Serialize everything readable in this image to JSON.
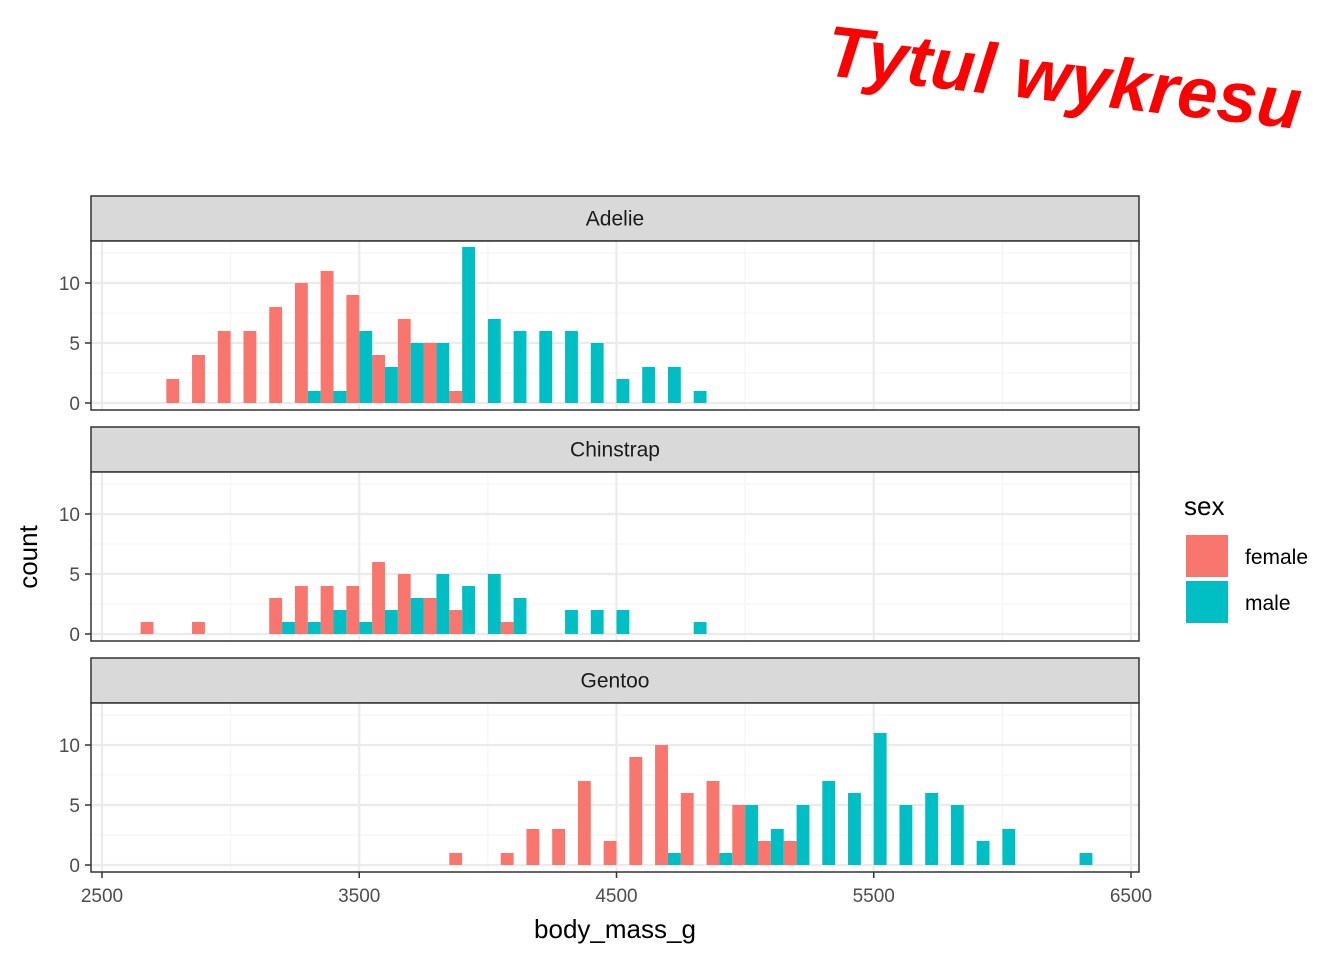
{
  "title": "Tytul wykresu",
  "title_color": "#ff0000",
  "colors": {
    "female": "#F8766D",
    "male": "#00BFC4",
    "strip_fill": "#D9D9D9",
    "strip_border": "#333333",
    "grid_major": "#EBEBEB",
    "grid_minor": "#F5F5F5"
  },
  "chart_data": {
    "type": "bar",
    "xlabel": "body_mass_g",
    "ylabel": "count",
    "xlim": [
      2500,
      6500
    ],
    "ylim": [
      0,
      13
    ],
    "x_ticks": [
      2500,
      3500,
      4500,
      5500,
      6500
    ],
    "y_ticks": [
      0,
      5,
      10
    ],
    "bin_width": 100,
    "grid": true,
    "legend": {
      "title": "sex",
      "position": "right",
      "entries": [
        "female",
        "male"
      ]
    },
    "panels": [
      {
        "label": "Adelie",
        "series": [
          {
            "name": "female",
            "bins": [
              2800,
              2900,
              3000,
              3100,
              3200,
              3300,
              3400,
              3500,
              3600,
              3700,
              3800,
              3900
            ],
            "values": [
              2,
              4,
              6,
              6,
              8,
              10,
              11,
              9,
              4,
              7,
              5,
              1
            ]
          },
          {
            "name": "male",
            "bins": [
              3300,
              3400,
              3500,
              3600,
              3700,
              3800,
              3900,
              4000,
              4100,
              4200,
              4300,
              4400,
              4500,
              4600,
              4700,
              4800
            ],
            "values": [
              1,
              1,
              6,
              3,
              5,
              5,
              13,
              7,
              6,
              6,
              6,
              5,
              2,
              3,
              3,
              1
            ]
          }
        ]
      },
      {
        "label": "Chinstrap",
        "series": [
          {
            "name": "female",
            "bins": [
              2700,
              2900,
              3200,
              3300,
              3400,
              3500,
              3600,
              3700,
              3800,
              3900,
              4100
            ],
            "values": [
              1,
              1,
              3,
              4,
              4,
              4,
              6,
              5,
              3,
              2,
              1
            ]
          },
          {
            "name": "male",
            "bins": [
              3200,
              3300,
              3400,
              3500,
              3600,
              3700,
              3800,
              3900,
              4000,
              4100,
              4300,
              4400,
              4500,
              4800
            ],
            "values": [
              1,
              1,
              2,
              1,
              2,
              3,
              5,
              4,
              5,
              3,
              2,
              2,
              2,
              1
            ]
          }
        ]
      },
      {
        "label": "Gentoo",
        "series": [
          {
            "name": "female",
            "bins": [
              3900,
              4100,
              4200,
              4300,
              4400,
              4500,
              4600,
              4700,
              4800,
              4900,
              5000,
              5100,
              5200
            ],
            "values": [
              1,
              1,
              3,
              3,
              7,
              2,
              9,
              10,
              6,
              7,
              5,
              2,
              2
            ]
          },
          {
            "name": "male",
            "bins": [
              4700,
              4900,
              5000,
              5100,
              5200,
              5300,
              5400,
              5500,
              5600,
              5700,
              5800,
              5900,
              6000,
              6300
            ],
            "values": [
              1,
              1,
              5,
              3,
              5,
              7,
              6,
              11,
              5,
              6,
              5,
              2,
              3,
              1
            ]
          }
        ]
      }
    ]
  }
}
